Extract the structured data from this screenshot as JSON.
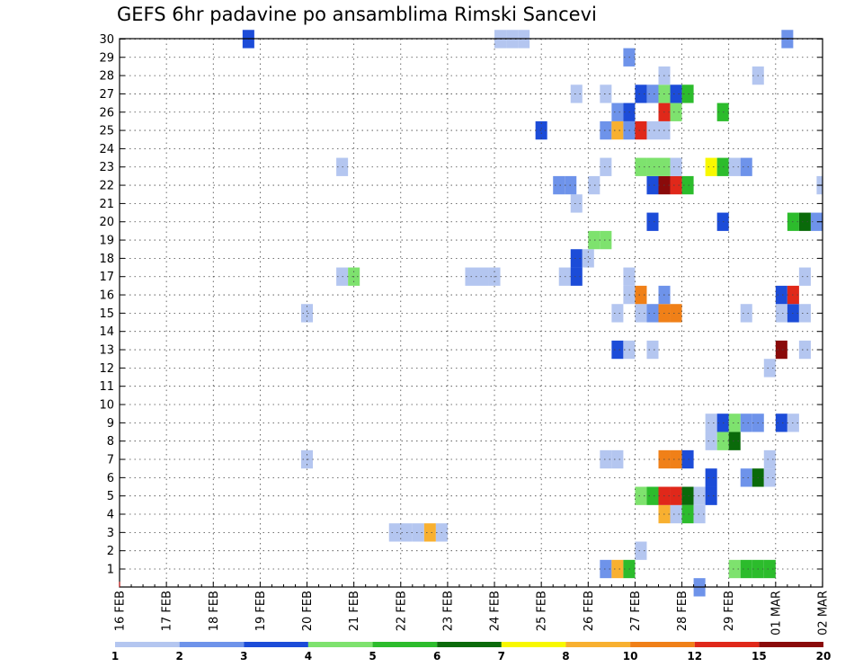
{
  "chart_data": {
    "type": "heatmap",
    "title": "GEFS 6hr padavine po ansamblima Rimski Sancevi",
    "xlabel": "",
    "ylabel": "",
    "x_ticks": [
      "16 FEB",
      "17 FEB",
      "18 FEB",
      "19 FEB",
      "20 FEB",
      "21 FEB",
      "22 FEB",
      "23 FEB",
      "24 FEB",
      "25 FEB",
      "26 FEB",
      "27 FEB",
      "28 FEB",
      "29 FEB",
      "01 MAR",
      "02 MAR"
    ],
    "y_ticks": [
      "1",
      "2",
      "3",
      "4",
      "5",
      "6",
      "7",
      "8",
      "9",
      "10",
      "11",
      "12",
      "13",
      "14",
      "15",
      "16",
      "17",
      "18",
      "19",
      "20",
      "21",
      "22",
      "23",
      "24",
      "25",
      "26",
      "27",
      "28",
      "29",
      "30"
    ],
    "x_unit": "6-hour step from 16 FEB 00Z",
    "ylim": [
      1,
      30
    ],
    "grid": true,
    "colorbar": {
      "labels": [
        "1",
        "2",
        "3",
        "4",
        "5",
        "6",
        "7",
        "8",
        "10",
        "12",
        "15",
        "20"
      ],
      "colors": [
        "#b4c6f0",
        "#6e93ea",
        "#1c4cd8",
        "#7ee26e",
        "#2cbc2c",
        "#0a6a0a",
        "#f8f800",
        "#f8b030",
        "#f08018",
        "#e0281a",
        "#8a0a0a"
      ]
    },
    "cells": [
      {
        "t": 41.5,
        "y": 1,
        "c": 1
      },
      {
        "t": 42.5,
        "y": 1,
        "c": 7
      },
      {
        "t": 43.5,
        "y": 1,
        "c": 4
      },
      {
        "t": 52.5,
        "y": 1,
        "c": 3
      },
      {
        "t": 53.5,
        "y": 1,
        "c": 4
      },
      {
        "t": 54.5,
        "y": 1,
        "c": 4
      },
      {
        "t": 55.5,
        "y": 1,
        "c": 4
      },
      {
        "t": 49.5,
        "y": 0,
        "c": 1
      },
      {
        "t": 44.5,
        "y": 2,
        "c": 0
      },
      {
        "t": 64,
        "y": 2,
        "c": 0
      },
      {
        "t": 23.5,
        "y": 3,
        "c": 0
      },
      {
        "t": 24.5,
        "y": 3,
        "c": 0
      },
      {
        "t": 25.5,
        "y": 3,
        "c": 0
      },
      {
        "t": 26.5,
        "y": 3,
        "c": 7
      },
      {
        "t": 27.5,
        "y": 3,
        "c": 0
      },
      {
        "t": 46.5,
        "y": 4,
        "c": 7
      },
      {
        "t": 47.5,
        "y": 4,
        "c": 0
      },
      {
        "t": 48.5,
        "y": 4,
        "c": 4
      },
      {
        "t": 49.5,
        "y": 4,
        "c": 0
      },
      {
        "t": 44.5,
        "y": 5,
        "c": 3
      },
      {
        "t": 45.5,
        "y": 5,
        "c": 4
      },
      {
        "t": 46.5,
        "y": 5,
        "c": 9
      },
      {
        "t": 47.5,
        "y": 5,
        "c": 9
      },
      {
        "t": 48.5,
        "y": 5,
        "c": 5
      },
      {
        "t": 49.5,
        "y": 5,
        "c": 0
      },
      {
        "t": 50.5,
        "y": 5,
        "c": 2
      },
      {
        "t": 50.5,
        "y": 6,
        "c": 2
      },
      {
        "t": 53.5,
        "y": 6,
        "c": 1
      },
      {
        "t": 54.5,
        "y": 6,
        "c": 5
      },
      {
        "t": 55.5,
        "y": 6,
        "c": 0
      },
      {
        "t": 16,
        "y": 7,
        "c": 0
      },
      {
        "t": 41.5,
        "y": 7,
        "c": 0
      },
      {
        "t": 42.5,
        "y": 7,
        "c": 0
      },
      {
        "t": 46.5,
        "y": 7,
        "c": 8
      },
      {
        "t": 47.5,
        "y": 7,
        "c": 8
      },
      {
        "t": 48.5,
        "y": 7,
        "c": 2
      },
      {
        "t": 55.5,
        "y": 7,
        "c": 0
      },
      {
        "t": 50.5,
        "y": 8,
        "c": 0
      },
      {
        "t": 51.5,
        "y": 8,
        "c": 3
      },
      {
        "t": 52.5,
        "y": 8,
        "c": 5
      },
      {
        "t": 64,
        "y": 8,
        "c": 0
      },
      {
        "t": 50.5,
        "y": 9,
        "c": 0
      },
      {
        "t": 51.5,
        "y": 9,
        "c": 2
      },
      {
        "t": 52.5,
        "y": 9,
        "c": 3
      },
      {
        "t": 53.5,
        "y": 9,
        "c": 1
      },
      {
        "t": 54.5,
        "y": 9,
        "c": 1
      },
      {
        "t": 56.5,
        "y": 9,
        "c": 2
      },
      {
        "t": 57.5,
        "y": 9,
        "c": 0
      },
      {
        "t": 55.5,
        "y": 12,
        "c": 0
      },
      {
        "t": 42.5,
        "y": 13,
        "c": 2
      },
      {
        "t": 43.5,
        "y": 13,
        "c": 0
      },
      {
        "t": 45.5,
        "y": 13,
        "c": 0
      },
      {
        "t": 56.5,
        "y": 13,
        "c": 10
      },
      {
        "t": 58.5,
        "y": 13,
        "c": 0
      },
      {
        "t": 16,
        "y": 15,
        "c": 0
      },
      {
        "t": 42.5,
        "y": 15,
        "c": 0
      },
      {
        "t": 44.5,
        "y": 15,
        "c": 0
      },
      {
        "t": 45.5,
        "y": 15,
        "c": 1
      },
      {
        "t": 46.5,
        "y": 15,
        "c": 8
      },
      {
        "t": 47.5,
        "y": 15,
        "c": 8
      },
      {
        "t": 53.5,
        "y": 15,
        "c": 0
      },
      {
        "t": 56.5,
        "y": 15,
        "c": 0
      },
      {
        "t": 57.5,
        "y": 15,
        "c": 2
      },
      {
        "t": 58.5,
        "y": 15,
        "c": 0
      },
      {
        "t": 43.5,
        "y": 16,
        "c": 0
      },
      {
        "t": 44.5,
        "y": 16,
        "c": 8
      },
      {
        "t": 46.5,
        "y": 16,
        "c": 1
      },
      {
        "t": 56.5,
        "y": 16,
        "c": 2
      },
      {
        "t": 57.5,
        "y": 16,
        "c": 9
      },
      {
        "t": 19,
        "y": 17,
        "c": 0
      },
      {
        "t": 20,
        "y": 17,
        "c": 3
      },
      {
        "t": 30,
        "y": 17,
        "c": 0
      },
      {
        "t": 31,
        "y": 17,
        "c": 0
      },
      {
        "t": 32,
        "y": 17,
        "c": 0
      },
      {
        "t": 38,
        "y": 17,
        "c": 0
      },
      {
        "t": 39,
        "y": 17,
        "c": 2
      },
      {
        "t": 43.5,
        "y": 17,
        "c": 0
      },
      {
        "t": 58.5,
        "y": 17,
        "c": 0
      },
      {
        "t": 39,
        "y": 18,
        "c": 2
      },
      {
        "t": 40,
        "y": 18,
        "c": 0
      },
      {
        "t": 40.5,
        "y": 19,
        "c": 3
      },
      {
        "t": 41.5,
        "y": 19,
        "c": 3
      },
      {
        "t": 62,
        "y": 19,
        "c": 0
      },
      {
        "t": 64.4,
        "y": 19,
        "c": 2
      },
      {
        "t": 45.5,
        "y": 20,
        "c": 2
      },
      {
        "t": 51.5,
        "y": 20,
        "c": 2
      },
      {
        "t": 57.5,
        "y": 20,
        "c": 4
      },
      {
        "t": 58.5,
        "y": 20,
        "c": 5
      },
      {
        "t": 59.5,
        "y": 20,
        "c": 1
      },
      {
        "t": 64.4,
        "y": 20,
        "c": 5
      },
      {
        "t": 39,
        "y": 21,
        "c": 0
      },
      {
        "t": 37.5,
        "y": 22,
        "c": 1
      },
      {
        "t": 38.5,
        "y": 22,
        "c": 1
      },
      {
        "t": 40.5,
        "y": 22,
        "c": 0
      },
      {
        "t": 45.5,
        "y": 22,
        "c": 2
      },
      {
        "t": 46.5,
        "y": 22,
        "c": 10
      },
      {
        "t": 47.5,
        "y": 22,
        "c": 9
      },
      {
        "t": 48.5,
        "y": 22,
        "c": 4
      },
      {
        "t": 60,
        "y": 22,
        "c": 0
      },
      {
        "t": 19,
        "y": 23,
        "c": 0
      },
      {
        "t": 41.5,
        "y": 23,
        "c": 0
      },
      {
        "t": 44.5,
        "y": 23,
        "c": 3
      },
      {
        "t": 45.5,
        "y": 23,
        "c": 3
      },
      {
        "t": 46.5,
        "y": 23,
        "c": 3
      },
      {
        "t": 47.5,
        "y": 23,
        "c": 0
      },
      {
        "t": 50.5,
        "y": 23,
        "c": 6
      },
      {
        "t": 51.5,
        "y": 23,
        "c": 4
      },
      {
        "t": 52.5,
        "y": 23,
        "c": 0
      },
      {
        "t": 53.5,
        "y": 23,
        "c": 1
      },
      {
        "t": 36,
        "y": 25,
        "c": 2
      },
      {
        "t": 41.5,
        "y": 25,
        "c": 1
      },
      {
        "t": 42.5,
        "y": 25,
        "c": 7
      },
      {
        "t": 43.5,
        "y": 25,
        "c": 1
      },
      {
        "t": 44.5,
        "y": 25,
        "c": 9
      },
      {
        "t": 45.5,
        "y": 25,
        "c": 0
      },
      {
        "t": 46.5,
        "y": 25,
        "c": 0
      },
      {
        "t": 62,
        "y": 25,
        "c": 2
      },
      {
        "t": 64,
        "y": 25,
        "c": 1
      },
      {
        "t": 42.5,
        "y": 26,
        "c": 1
      },
      {
        "t": 43.5,
        "y": 26,
        "c": 2
      },
      {
        "t": 46.5,
        "y": 26,
        "c": 9
      },
      {
        "t": 47.5,
        "y": 26,
        "c": 3
      },
      {
        "t": 51.5,
        "y": 26,
        "c": 4
      },
      {
        "t": 39,
        "y": 27,
        "c": 0
      },
      {
        "t": 41.5,
        "y": 27,
        "c": 0
      },
      {
        "t": 44.5,
        "y": 27,
        "c": 2
      },
      {
        "t": 45.5,
        "y": 27,
        "c": 1
      },
      {
        "t": 46.5,
        "y": 27,
        "c": 3
      },
      {
        "t": 47.5,
        "y": 27,
        "c": 2
      },
      {
        "t": 48.5,
        "y": 27,
        "c": 4
      },
      {
        "t": 62,
        "y": 27,
        "c": 1
      },
      {
        "t": 46.5,
        "y": 28,
        "c": 0
      },
      {
        "t": 54.5,
        "y": 28,
        "c": 0
      },
      {
        "t": 63.5,
        "y": 28,
        "c": 0
      },
      {
        "t": 64.5,
        "y": 28,
        "c": 4
      },
      {
        "t": 43.5,
        "y": 29,
        "c": 1
      },
      {
        "t": 11,
        "y": 30,
        "c": 2
      },
      {
        "t": 32.5,
        "y": 30,
        "c": 0
      },
      {
        "t": 33.5,
        "y": 30,
        "c": 0
      },
      {
        "t": 34.5,
        "y": 30,
        "c": 0
      },
      {
        "t": 57,
        "y": 30,
        "c": 1
      }
    ]
  }
}
